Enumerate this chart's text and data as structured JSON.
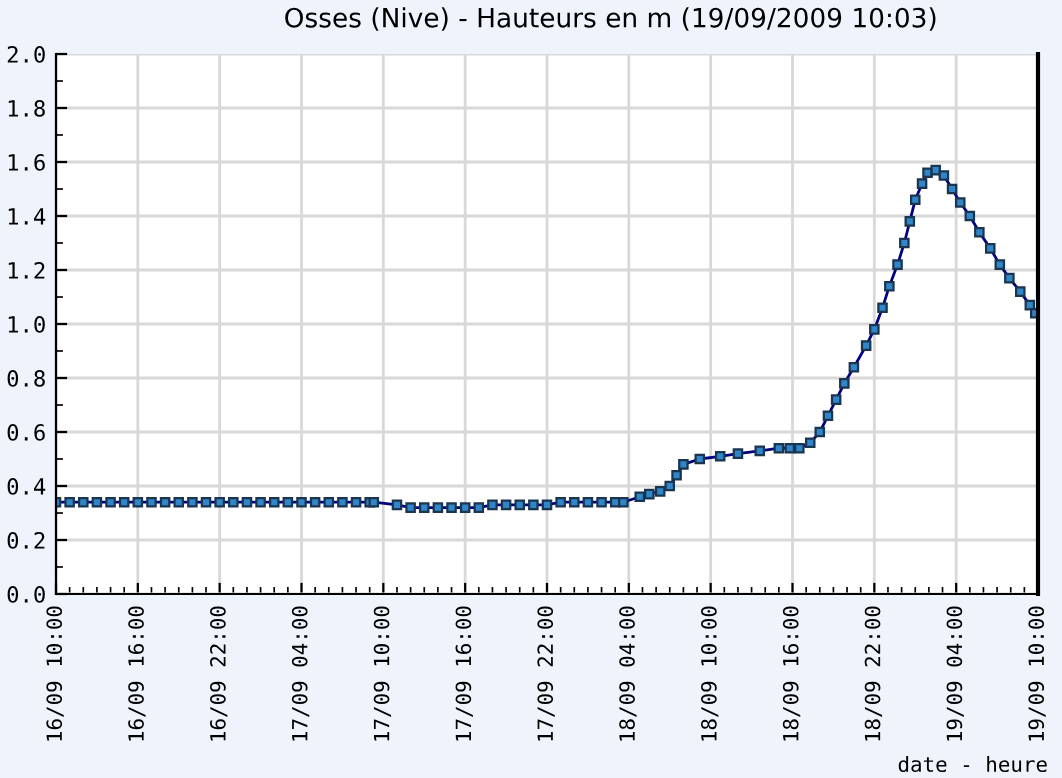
{
  "chart_data": {
    "type": "line",
    "title": "Osses (Nive) - Hauteurs en m (19/09/2009 10:03)",
    "xlabel": "date - heure",
    "series": [
      {
        "color": "#2f86c8",
        "x": [
          "2009-09-16T10:00",
          "2009-09-16T11:00",
          "2009-09-16T12:00",
          "2009-09-16T13:00",
          "2009-09-16T14:00",
          "2009-09-16T15:00",
          "2009-09-16T16:00",
          "2009-09-16T17:00",
          "2009-09-16T18:00",
          "2009-09-16T19:00",
          "2009-09-16T20:00",
          "2009-09-16T21:00",
          "2009-09-16T22:00",
          "2009-09-16T23:00",
          "2009-09-17T00:00",
          "2009-09-17T01:00",
          "2009-09-17T02:00",
          "2009-09-17T03:00",
          "2009-09-17T04:00",
          "2009-09-17T05:00",
          "2009-09-17T06:00",
          "2009-09-17T07:00",
          "2009-09-17T08:00",
          "2009-09-17T09:00",
          "2009-09-17T09:18",
          "2009-09-17T11:00",
          "2009-09-17T12:00",
          "2009-09-17T13:00",
          "2009-09-17T14:00",
          "2009-09-17T15:00",
          "2009-09-17T16:00",
          "2009-09-17T17:00",
          "2009-09-17T18:00",
          "2009-09-17T19:00",
          "2009-09-17T20:00",
          "2009-09-17T21:00",
          "2009-09-17T22:00",
          "2009-09-17T23:00",
          "2009-09-18T00:00",
          "2009-09-18T01:00",
          "2009-09-18T02:00",
          "2009-09-18T03:00",
          "2009-09-18T03:36",
          "2009-09-18T04:48",
          "2009-09-18T05:30",
          "2009-09-18T06:18",
          "2009-09-18T07:00",
          "2009-09-18T07:30",
          "2009-09-18T08:00",
          "2009-09-18T09:12",
          "2009-09-18T10:42",
          "2009-09-18T12:00",
          "2009-09-18T13:36",
          "2009-09-18T15:00",
          "2009-09-18T15:48",
          "2009-09-18T16:30",
          "2009-09-18T17:18",
          "2009-09-18T18:00",
          "2009-09-18T18:36",
          "2009-09-18T19:12",
          "2009-09-18T19:48",
          "2009-09-18T20:30",
          "2009-09-18T21:24",
          "2009-09-18T22:00",
          "2009-09-18T22:36",
          "2009-09-18T23:06",
          "2009-09-18T23:42",
          "2009-09-19T00:12",
          "2009-09-19T00:36",
          "2009-09-19T01:00",
          "2009-09-19T01:30",
          "2009-09-19T01:54",
          "2009-09-19T02:30",
          "2009-09-19T03:06",
          "2009-09-19T03:42",
          "2009-09-19T04:18",
          "2009-09-19T05:00",
          "2009-09-19T05:42",
          "2009-09-19T06:30",
          "2009-09-19T07:12",
          "2009-09-19T07:54",
          "2009-09-19T08:42",
          "2009-09-19T09:24",
          "2009-09-19T09:48"
        ],
        "values": [
          0.34,
          0.34,
          0.34,
          0.34,
          0.34,
          0.34,
          0.34,
          0.34,
          0.34,
          0.34,
          0.34,
          0.34,
          0.34,
          0.34,
          0.34,
          0.34,
          0.34,
          0.34,
          0.34,
          0.34,
          0.34,
          0.34,
          0.34,
          0.34,
          0.34,
          0.33,
          0.32,
          0.32,
          0.32,
          0.32,
          0.32,
          0.32,
          0.33,
          0.33,
          0.33,
          0.33,
          0.33,
          0.34,
          0.34,
          0.34,
          0.34,
          0.34,
          0.34,
          0.36,
          0.37,
          0.38,
          0.4,
          0.44,
          0.48,
          0.5,
          0.51,
          0.52,
          0.53,
          0.54,
          0.54,
          0.54,
          0.56,
          0.6,
          0.66,
          0.72,
          0.78,
          0.84,
          0.92,
          0.98,
          1.06,
          1.14,
          1.22,
          1.3,
          1.38,
          1.46,
          1.52,
          1.56,
          1.57,
          1.55,
          1.5,
          1.45,
          1.4,
          1.34,
          1.28,
          1.22,
          1.17,
          1.12,
          1.07,
          1.04
        ]
      }
    ],
    "marker": "square",
    "line_style": "solid",
    "grid": true,
    "xlim": [
      "2009-09-16T10:00",
      "2009-09-19T10:00"
    ],
    "xticks": [
      {
        "value": "2009-09-16T10:00",
        "label": "16/09 10:00"
      },
      {
        "value": "2009-09-16T16:00",
        "label": "16/09 16:00"
      },
      {
        "value": "2009-09-16T22:00",
        "label": "16/09 22:00"
      },
      {
        "value": "2009-09-17T04:00",
        "label": "17/09 04:00"
      },
      {
        "value": "2009-09-17T10:00",
        "label": "17/09 10:00"
      },
      {
        "value": "2009-09-17T16:00",
        "label": "17/09 16:00"
      },
      {
        "value": "2009-09-17T22:00",
        "label": "17/09 22:00"
      },
      {
        "value": "2009-09-18T04:00",
        "label": "18/09 04:00"
      },
      {
        "value": "2009-09-18T10:00",
        "label": "18/09 10:00"
      },
      {
        "value": "2009-09-18T16:00",
        "label": "18/09 16:00"
      },
      {
        "value": "2009-09-18T22:00",
        "label": "18/09 22:00"
      },
      {
        "value": "2009-09-19T04:00",
        "label": "19/09 04:00"
      },
      {
        "value": "2009-09-19T10:00",
        "label": "19/09 10:00"
      }
    ],
    "ylim": [
      0,
      2
    ],
    "yticks": [
      {
        "value": 0,
        "label": "0.0"
      },
      {
        "value": 0.2,
        "label": "0.2"
      },
      {
        "value": 0.4,
        "label": "0.4"
      },
      {
        "value": 0.6,
        "label": "0.6"
      },
      {
        "value": 0.8,
        "label": "0.8"
      },
      {
        "value": 1.0,
        "label": "1.0"
      },
      {
        "value": 1.2,
        "label": "1.2"
      },
      {
        "value": 1.4,
        "label": "1.4"
      },
      {
        "value": 1.6,
        "label": "1.6"
      },
      {
        "value": 1.8,
        "label": "1.8"
      },
      {
        "value": 2.0,
        "label": "2.0"
      }
    ]
  }
}
